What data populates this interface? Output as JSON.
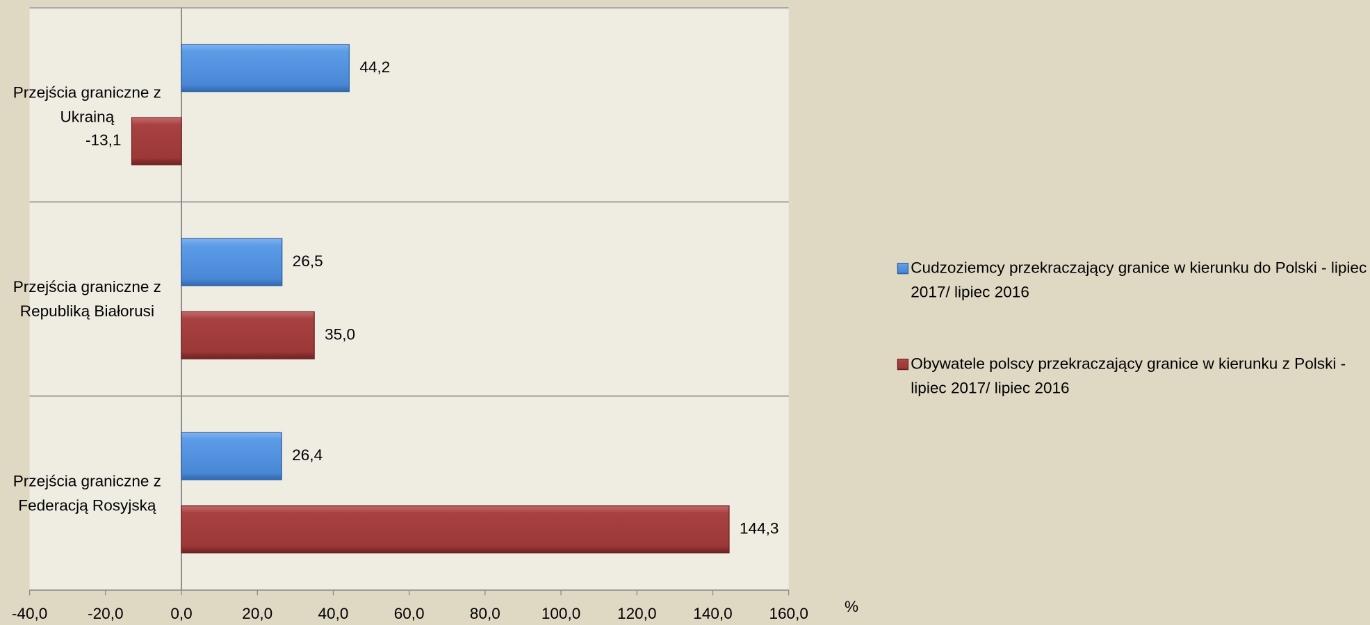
{
  "chart_data": {
    "type": "bar",
    "orientation": "horizontal",
    "categories": [
      "Przejścia graniczne z Ukrainą",
      "Przejścia graniczne z Republiką Białorusi",
      "Przejścia graniczne z Federacją Rosyjską"
    ],
    "series": [
      {
        "name": "Cudzoziemcy przekraczający granice w kierunku do Polski - lipiec 2017/ lipiec 2016",
        "color": "#4f8fdf",
        "values": [
          44.2,
          26.5,
          26.4
        ],
        "value_labels": [
          "44,2",
          "26,5",
          "26,4"
        ]
      },
      {
        "name": "Obywatele polscy przekraczający granice w kierunku z Polski - lipiec 2017/ lipiec 2016",
        "color": "#a33b3b",
        "values": [
          -13.1,
          35.0,
          144.3
        ],
        "value_labels": [
          "-13,1",
          "35,0",
          "144,3"
        ]
      }
    ],
    "xlabel": "%",
    "xlim": [
      -40,
      160
    ],
    "xticks": [
      {
        "value": -40,
        "label": "-40,0"
      },
      {
        "value": -20,
        "label": "-20,0"
      },
      {
        "value": 0,
        "label": "0,0"
      },
      {
        "value": 20,
        "label": "20,0"
      },
      {
        "value": 40,
        "label": "40,0"
      },
      {
        "value": 60,
        "label": "60,0"
      },
      {
        "value": 80,
        "label": "80,0"
      },
      {
        "value": 100,
        "label": "100,0"
      },
      {
        "value": 120,
        "label": "120,0"
      },
      {
        "value": 140,
        "label": "140,0"
      },
      {
        "value": 160,
        "label": "160,0"
      }
    ],
    "legend": "right"
  }
}
